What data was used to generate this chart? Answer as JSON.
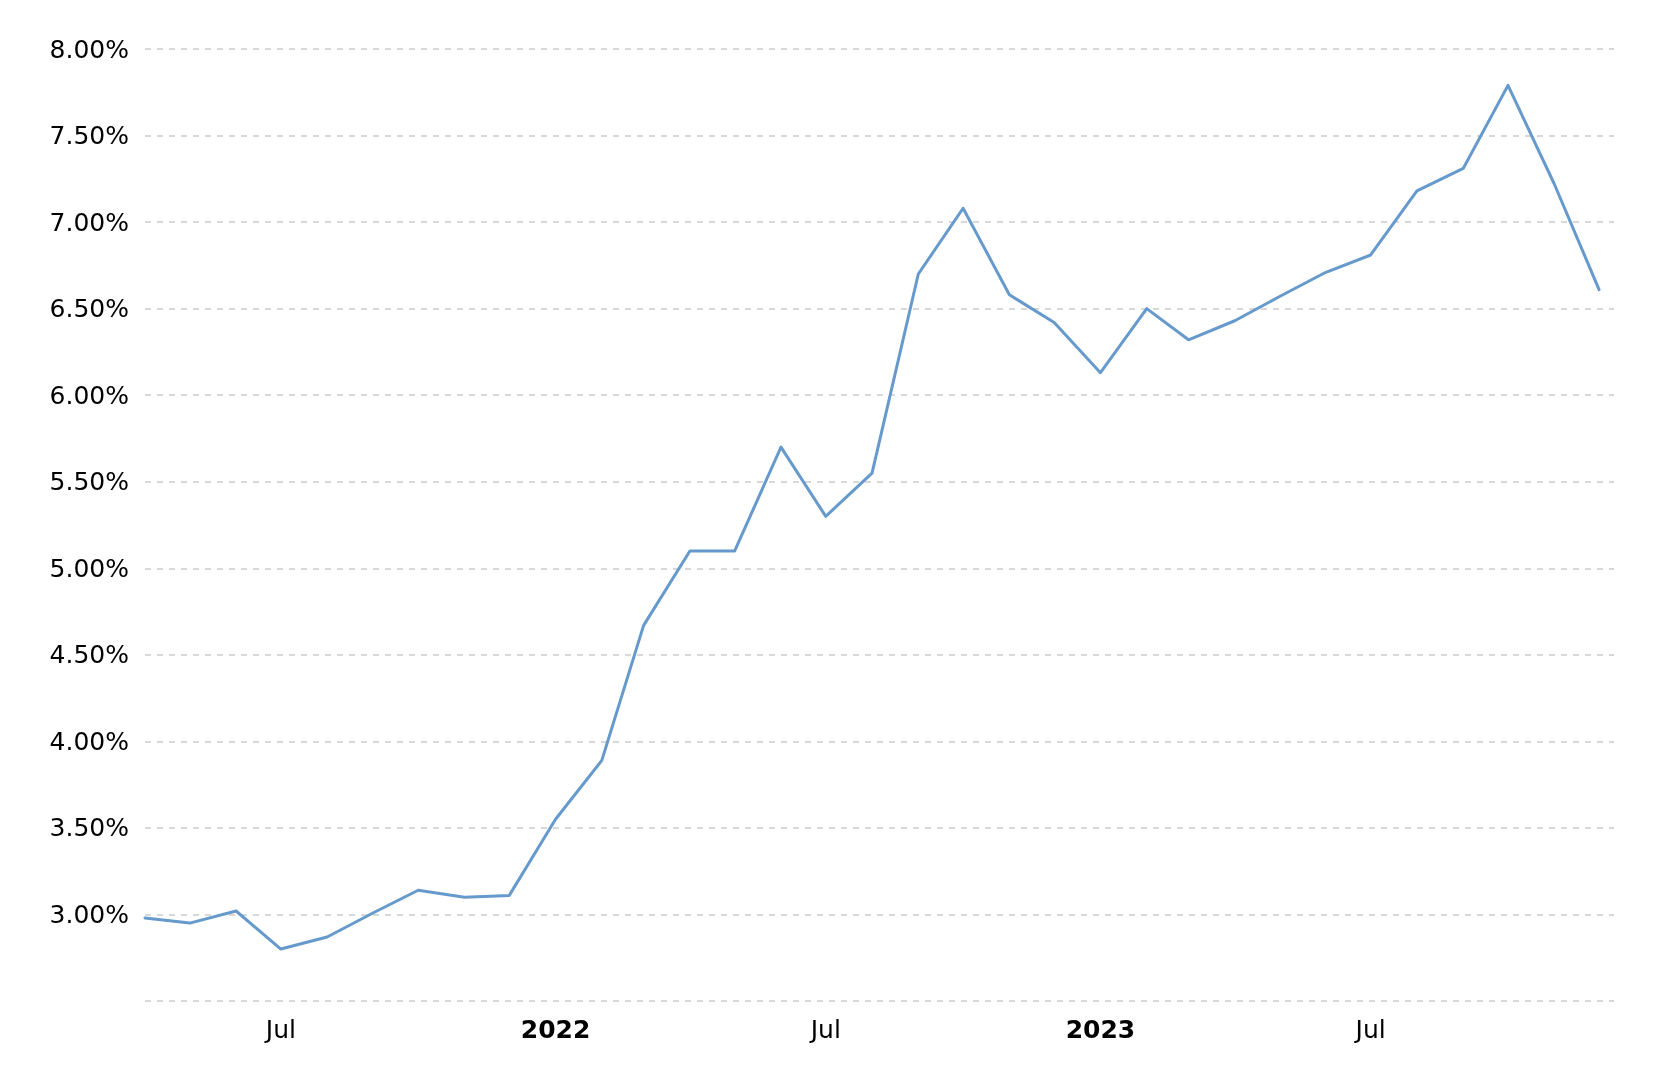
{
  "chart_data": {
    "type": "line",
    "x": [
      "2021-04",
      "2021-05",
      "2021-06",
      "2021-07",
      "2021-08",
      "2021-09",
      "2021-10",
      "2021-11",
      "2021-12",
      "2022-01",
      "2022-02",
      "2022-03",
      "2022-04",
      "2022-05",
      "2022-06",
      "2022-07",
      "2022-08",
      "2022-09",
      "2022-10",
      "2022-11",
      "2022-12",
      "2023-01",
      "2023-02",
      "2023-03",
      "2023-04",
      "2023-05",
      "2023-06",
      "2023-07",
      "2023-08",
      "2023-09",
      "2023-10",
      "2023-11",
      "2023-12"
    ],
    "series": [
      {
        "color": "#6699cc",
        "values": [
          2.98,
          2.95,
          3.02,
          2.8,
          2.87,
          3.01,
          3.14,
          3.1,
          3.11,
          3.55,
          3.89,
          4.67,
          5.1,
          5.1,
          5.7,
          5.3,
          5.55,
          6.7,
          7.08,
          6.58,
          6.42,
          6.13,
          6.5,
          6.32,
          6.43,
          6.57,
          6.71,
          6.81,
          7.18,
          7.31,
          7.79,
          7.22,
          6.61
        ]
      }
    ],
    "xlim": [
      "2021-04",
      "2023-12-11"
    ],
    "xticks": [
      {
        "value": "2021-07",
        "label": "Jul"
      },
      {
        "value": "2022-01",
        "label": "2022"
      },
      {
        "value": "2022-07",
        "label": "Jul"
      },
      {
        "value": "2023-01",
        "label": "2023"
      },
      {
        "value": "2023-07",
        "label": "Jul"
      }
    ],
    "ylim": [
      2.5,
      8
    ],
    "yticks": [
      {
        "value": 2.5,
        "label": null
      },
      {
        "value": 3,
        "label": "3.00%"
      },
      {
        "value": 3.5,
        "label": "3.50%"
      },
      {
        "value": 4,
        "label": "4.00%"
      },
      {
        "value": 4.5,
        "label": "4.50%"
      },
      {
        "value": 5,
        "label": "5.00%"
      },
      {
        "value": 5.5,
        "label": "5.50%"
      },
      {
        "value": 6,
        "label": "6.00%"
      },
      {
        "value": 6.5,
        "label": "6.50%"
      },
      {
        "value": 7,
        "label": "7.00%"
      },
      {
        "value": 7.5,
        "label": "7.50%"
      },
      {
        "value": 8,
        "label": "8.00%"
      }
    ],
    "grid": "y",
    "marker": "none",
    "line_style": "solid"
  }
}
